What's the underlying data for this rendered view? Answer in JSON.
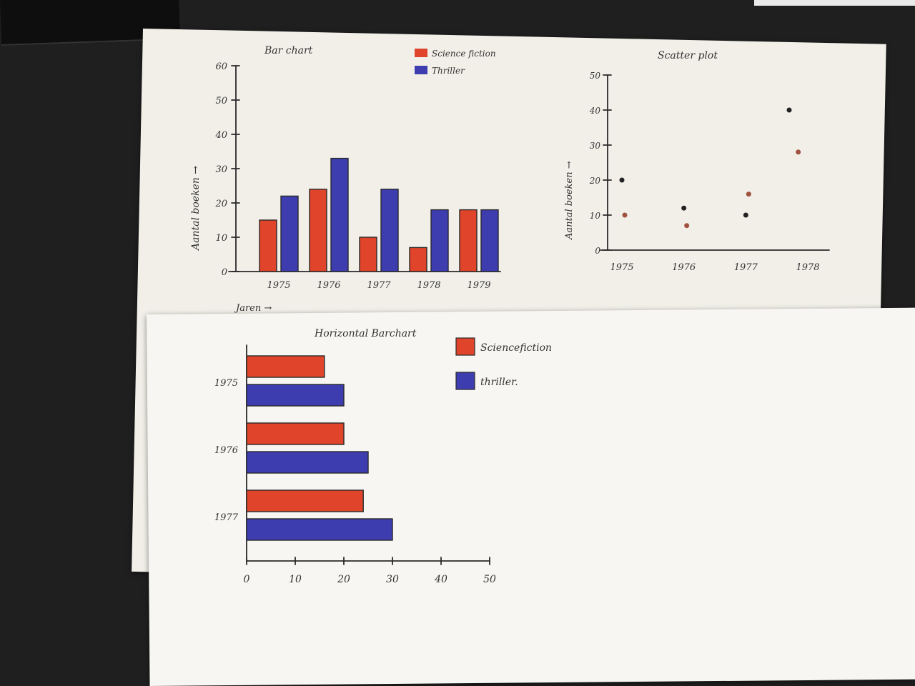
{
  "chart_data": [
    {
      "id": "bar",
      "type": "bar",
      "title": "Bar chart",
      "xlabel": "Jaren →",
      "ylabel": "Aantal boeken →",
      "categories": [
        "1975",
        "1976",
        "1977",
        "1978",
        "1979"
      ],
      "series": [
        {
          "name": "Science fiction",
          "color": "#e0452b",
          "values": [
            15,
            24,
            10,
            7,
            18
          ]
        },
        {
          "name": "Thriller",
          "color": "#3d3db0",
          "values": [
            22,
            33,
            24,
            18,
            18
          ]
        }
      ],
      "ylim": [
        0,
        60
      ],
      "yticks": [
        "0",
        "10",
        "20",
        "30",
        "40",
        "50",
        "60"
      ],
      "legend": "top-right"
    },
    {
      "id": "scatter",
      "type": "scatter",
      "title": "Scatter plot",
      "ylabel": "Aantal boeken →",
      "xticks": [
        "1975",
        "1976",
        "1977",
        "1978"
      ],
      "yticks": [
        "0",
        "10",
        "20",
        "30",
        "40",
        "50"
      ],
      "ylim": [
        0,
        50
      ],
      "xlim": [
        1975,
        1978
      ],
      "series": [
        {
          "color": "#222222",
          "points": [
            [
              1975,
              20
            ],
            [
              1976,
              12
            ],
            [
              1977,
              10
            ],
            [
              1977.7,
              40
            ]
          ]
        },
        {
          "color": "#a0523f",
          "points": [
            [
              1975,
              10
            ],
            [
              1976,
              7
            ],
            [
              1977,
              16
            ],
            [
              1977.8,
              28
            ]
          ]
        }
      ]
    },
    {
      "id": "hbar",
      "type": "bar",
      "orientation": "horizontal",
      "title": "Horizontal Barchart",
      "categories": [
        "1975",
        "1976",
        "1977"
      ],
      "series": [
        {
          "name": "Sciencefiction",
          "color": "#e0452b",
          "values": [
            16,
            20,
            24
          ]
        },
        {
          "name": "thriller.",
          "color": "#3d3db0",
          "values": [
            20,
            25,
            30
          ]
        }
      ],
      "xlim": [
        0,
        50
      ],
      "xticks": [
        "0",
        "10",
        "20",
        "30",
        "40",
        "50"
      ],
      "legend": "top-right"
    }
  ]
}
